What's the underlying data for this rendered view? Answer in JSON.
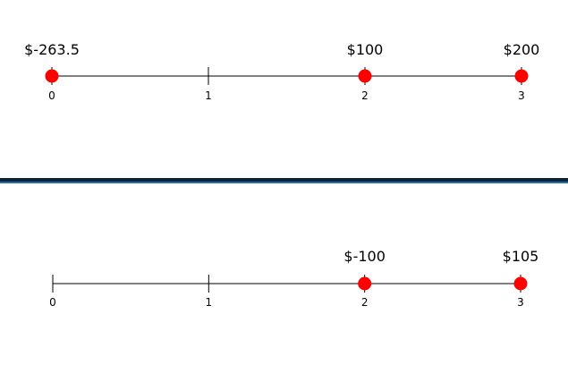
{
  "colors": {
    "axis": "#000000",
    "marker": "#ff0000",
    "divider_dark": "#0d2233",
    "divider_accent": "#1f6fb2"
  },
  "timelines": [
    {
      "periods": [
        "0",
        "1",
        "2",
        "3"
      ],
      "cash_flows": [
        {
          "period": 0,
          "label": "$-263.5"
        },
        {
          "period": 2,
          "label": "$100"
        },
        {
          "period": 3,
          "label": "$200"
        }
      ]
    },
    {
      "periods": [
        "0",
        "1",
        "2",
        "3"
      ],
      "cash_flows": [
        {
          "period": 2,
          "label": "$-100"
        },
        {
          "period": 3,
          "label": "$105"
        }
      ]
    }
  ]
}
